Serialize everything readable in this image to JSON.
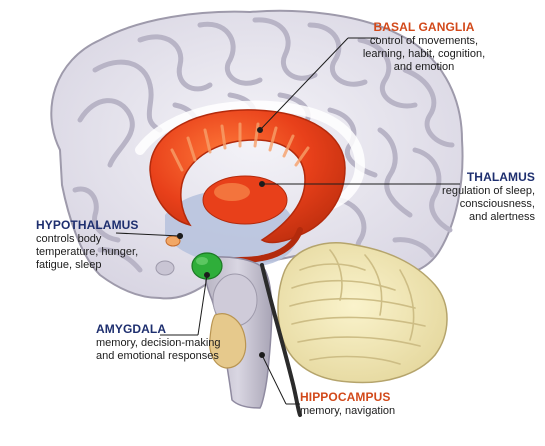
{
  "diagram": {
    "labels": {
      "basal_ganglia": {
        "title": "BASAL GANGLIA",
        "lines": [
          "control of movements,",
          "learning, habit, cognition,",
          "and emotion"
        ]
      },
      "thalamus": {
        "title": "THALAMUS",
        "lines": [
          "regulation of sleep,",
          "consciousness,",
          "and alertness"
        ]
      },
      "hypothalamus": {
        "title": "HYPOTHALAMUS",
        "lines": [
          "controls body",
          "temperature, hunger,",
          "fatigue, sleep"
        ]
      },
      "amygdala": {
        "title": "AMYGDALA",
        "lines": [
          "memory, decision-making",
          "and emotional responses"
        ]
      },
      "hippocampus": {
        "title": "HIPPOCAMPUS",
        "lines": [
          "memory, navigation"
        ]
      }
    },
    "colors": {
      "basal_ganglia": "#e8401a",
      "amygdala": "#2fae3a",
      "cerebellum": "#f2e8b8",
      "brain_tissue": "#e7e5ee",
      "ventricle": "#b8c3de",
      "title_orange": "#d2491a",
      "title_navy": "#1e2f6f"
    }
  }
}
